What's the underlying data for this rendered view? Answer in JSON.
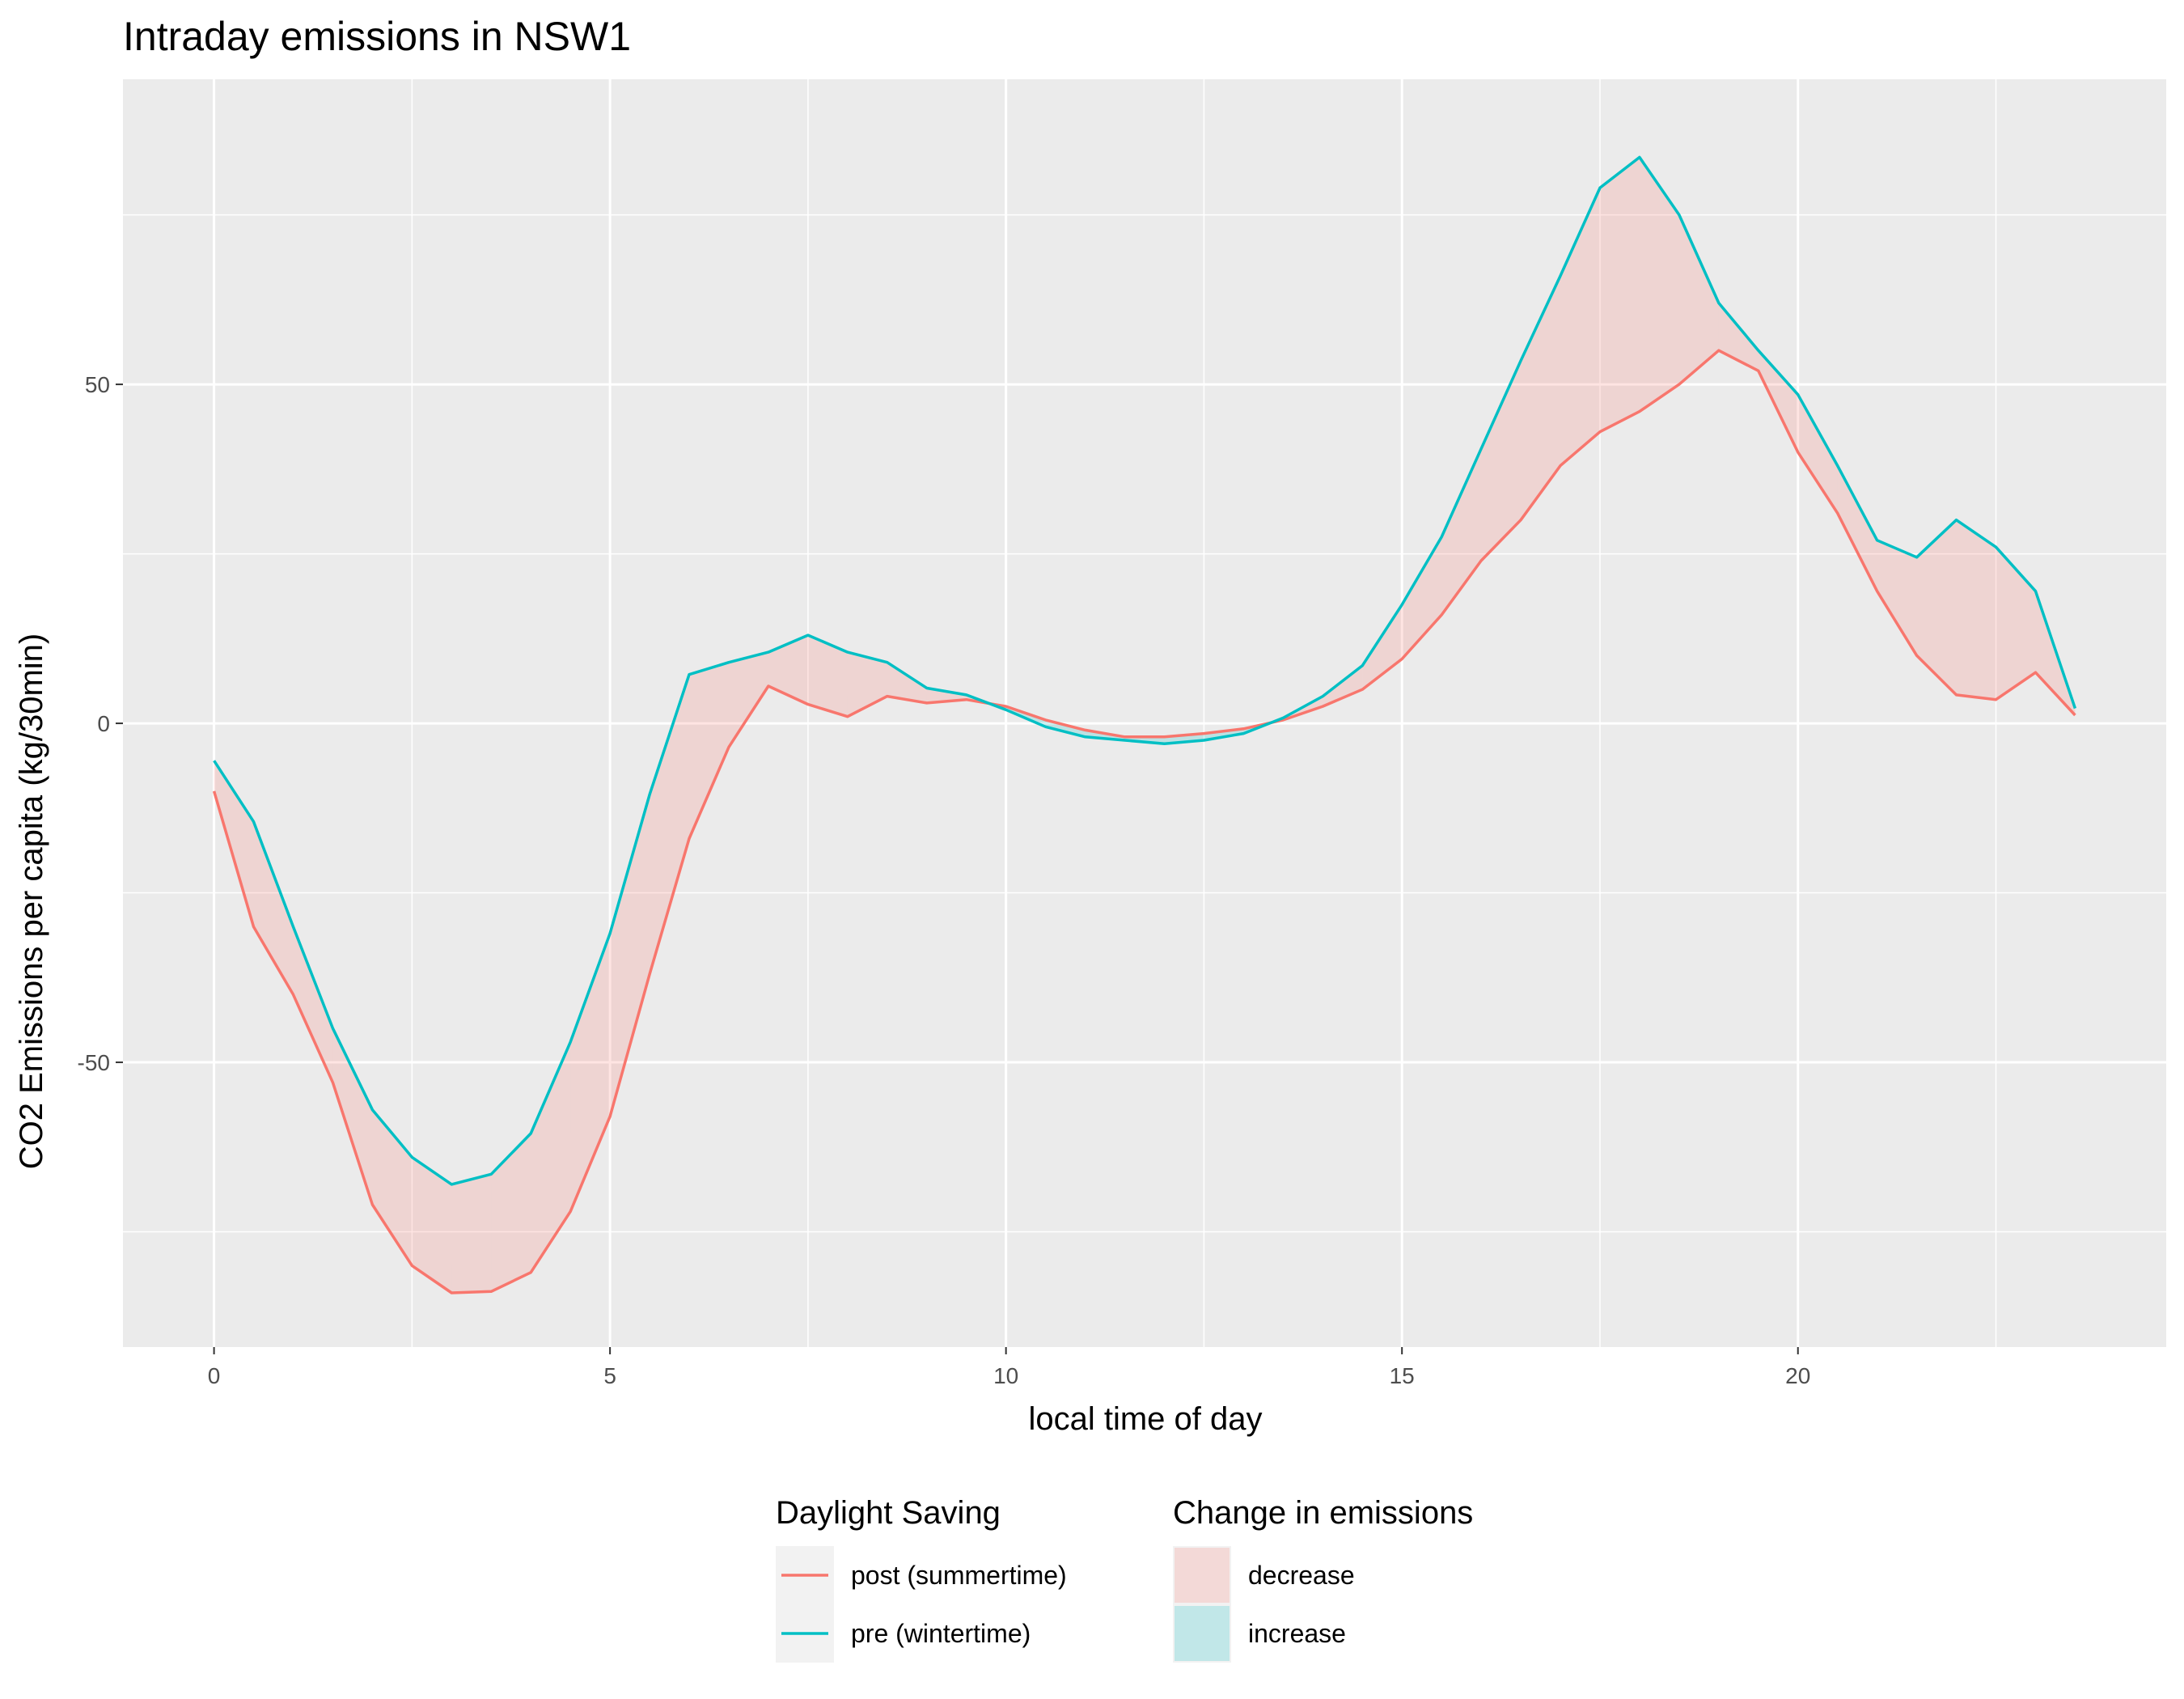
{
  "chart_data": {
    "type": "line",
    "title": "Intraday emissions in NSW1",
    "xlabel": "local time of day",
    "ylabel": "CO2 Emissions per capita (kg/30min)",
    "xlim": [
      -1.15,
      24.65
    ],
    "ylim": [
      -92,
      95
    ],
    "x_ticks": [
      0,
      5,
      10,
      15,
      20
    ],
    "x_tick_labels": [
      "0",
      "5",
      "10",
      "15",
      "20"
    ],
    "y_ticks": [
      -50,
      0,
      50
    ],
    "y_tick_labels": [
      "-50",
      "0",
      "50"
    ],
    "grid": true,
    "legend_position": "bottom",
    "x": [
      0,
      0.5,
      1,
      1.5,
      2,
      2.5,
      3,
      3.5,
      4,
      4.5,
      5,
      5.5,
      6,
      6.5,
      7,
      7.5,
      8,
      8.5,
      9,
      9.5,
      10,
      10.5,
      11,
      11.5,
      12,
      12.5,
      13,
      13.5,
      14,
      14.5,
      15,
      15.5,
      16,
      16.5,
      17,
      17.5,
      18,
      18.5,
      19,
      19.5,
      20,
      20.5,
      21,
      21.5,
      22,
      22.5,
      23,
      23.5
    ],
    "series": [
      {
        "name": "post (summertime)",
        "color": "#F8766D",
        "values": [
          -10,
          -30,
          -40,
          -53,
          -71,
          -80,
          -84,
          -83.8,
          -81,
          -72,
          -58,
          -37,
          -17,
          -3.5,
          5.5,
          2.8,
          1,
          4,
          3,
          3.5,
          2.5,
          0.5,
          -1,
          -2,
          -2,
          -1.5,
          -0.8,
          0.5,
          2.5,
          5,
          9.5,
          16,
          24,
          30,
          38,
          43,
          46,
          50,
          55,
          52,
          40,
          31,
          19.5,
          10,
          4.2,
          3.5,
          7.5,
          1.2
        ]
      },
      {
        "name": "pre (wintertime)",
        "color": "#00BFC4",
        "values": [
          -5.5,
          -14.5,
          -30,
          -45,
          -57,
          -64,
          -68,
          -66.5,
          -60.5,
          -47,
          -31,
          -10.5,
          7.2,
          9,
          10.5,
          13,
          10.5,
          9,
          5.2,
          4.2,
          2,
          -0.5,
          -2,
          -2.5,
          -3,
          -2.5,
          -1.5,
          0.8,
          4,
          8.5,
          17.5,
          27.5,
          40.5,
          53.5,
          66,
          79,
          83.5,
          75,
          62,
          55,
          48.5,
          38,
          27,
          24.5,
          30,
          26,
          19.5,
          2.2
        ]
      }
    ],
    "ribbon": {
      "name": "Change in emissions",
      "fill_decrease": "#F8766D",
      "fill_increase": "#00BFC4",
      "opacity": 0.2
    },
    "legends": [
      {
        "title": "Daylight Saving",
        "entries": [
          {
            "label": "post (summertime)",
            "color": "#F8766D"
          },
          {
            "label": "pre (wintertime)",
            "color": "#00BFC4"
          }
        ]
      },
      {
        "title": "Change in emissions",
        "entries": [
          {
            "label": "decrease",
            "color": "#F8766D"
          },
          {
            "label": "increase",
            "color": "#00BFC4"
          }
        ]
      }
    ],
    "panel_background": "#EBEBEB",
    "grid_color": "#FFFFFF"
  }
}
